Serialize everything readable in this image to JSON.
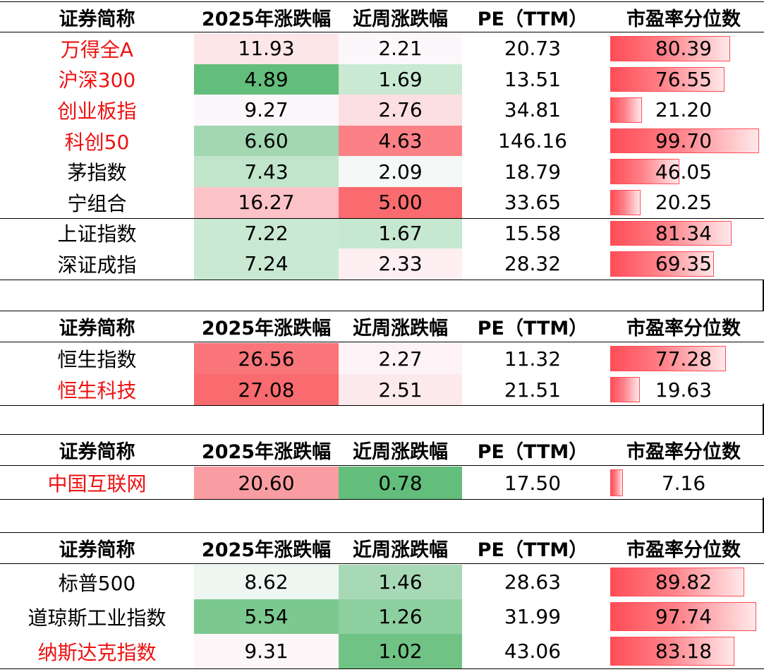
{
  "headers": {
    "name": "证券简称",
    "ytd": "2025年涨跌幅",
    "week": "近周涨跌幅",
    "pe": "PE（TTM）",
    "pct": "市盈率分位数"
  },
  "colors": {
    "highlight_name": "#ee1111",
    "pe_bar": "#ff4d57",
    "heat_up_strong": "#f96b6e",
    "heat_down_strong": "#63be7b"
  },
  "tables": [
    {
      "rows": [
        {
          "name": "万得全A",
          "red": true,
          "ytd": "11.93",
          "week": "2.21",
          "pe": "20.73",
          "pct": "80.39",
          "pct_value": 80.39,
          "ytd_bg": "#fde6e8",
          "week_bg": "#fcf7fa"
        },
        {
          "name": "沪深300",
          "red": true,
          "ytd": "4.89",
          "week": "1.69",
          "pe": "13.51",
          "pct": "76.55",
          "pct_value": 76.55,
          "ytd_bg": "#63be7b",
          "week_bg": "#c9e9d3"
        },
        {
          "name": "创业板指",
          "red": true,
          "ytd": "9.27",
          "week": "2.76",
          "pe": "34.81",
          "pct": "21.20",
          "pct_value": 21.2,
          "ytd_bg": "#fcf7fa",
          "week_bg": "#fcdfe2"
        },
        {
          "name": "科创50",
          "red": true,
          "ytd": "6.60",
          "week": "4.63",
          "pe": "146.16",
          "pct": "99.70",
          "pct_value": 99.7,
          "ytd_bg": "#a2d7b1",
          "week_bg": "#fb8187"
        },
        {
          "name": "茅指数",
          "red": false,
          "ytd": "7.43",
          "week": "2.09",
          "pe": "18.79",
          "pct": "46.05",
          "pct_value": 46.05,
          "ytd_bg": "#c1e5cb",
          "week_bg": "#f4f8f6"
        },
        {
          "name": "宁组合",
          "red": false,
          "ytd": "16.27",
          "week": "5.00",
          "pe": "33.65",
          "pct": "20.25",
          "pct_value": 20.25,
          "ytd_bg": "#fbc3c8",
          "week_bg": "#f96b6e"
        },
        {
          "name": "上证指数",
          "red": false,
          "ytd": "7.22",
          "week": "1.67",
          "pe": "15.58",
          "pct": "81.34",
          "pct_value": 81.34,
          "ytd_bg": "#c9e9d3",
          "week_bg": "#c6e7d0"
        },
        {
          "name": "深证成指",
          "red": false,
          "ytd": "7.24",
          "week": "2.33",
          "pe": "28.32",
          "pct": "69.35",
          "pct_value": 69.35,
          "ytd_bg": "#c9e9d3",
          "week_bg": "#fdeff2"
        }
      ]
    },
    {
      "rows": [
        {
          "name": "恒生指数",
          "red": false,
          "ytd": "26.56",
          "week": "2.27",
          "pe": "11.32",
          "pct": "77.28",
          "pct_value": 77.28,
          "ytd_bg": "#f9757a",
          "week_bg": "#fdf2f5"
        },
        {
          "name": "恒生科技",
          "red": true,
          "ytd": "27.08",
          "week": "2.51",
          "pe": "21.51",
          "pct": "19.63",
          "pct_value": 19.63,
          "ytd_bg": "#f96b6e",
          "week_bg": "#fce9ec"
        }
      ]
    },
    {
      "rows": [
        {
          "name": "中国互联网",
          "red": true,
          "ytd": "20.60",
          "week": "0.78",
          "pe": "17.50",
          "pct": "7.16",
          "pct_value": 7.16,
          "ytd_bg": "#fa9da2",
          "week_bg": "#63be7b"
        }
      ]
    },
    {
      "rows": [
        {
          "name": "标普500",
          "red": false,
          "ytd": "8.62",
          "week": "1.46",
          "pe": "28.63",
          "pct": "89.82",
          "pct_value": 89.82,
          "ytd_bg": "#eef6f1",
          "week_bg": "#a8d9b6"
        },
        {
          "name": "道琼斯工业指数",
          "red": false,
          "ytd": "5.54",
          "week": "1.26",
          "pe": "31.99",
          "pct": "97.74",
          "pct_value": 97.74,
          "ytd_bg": "#7cc98f",
          "week_bg": "#8ecfa0"
        },
        {
          "name": "纳斯达克指数",
          "red": true,
          "ytd": "9.31",
          "week": "1.02",
          "pe": "43.06",
          "pct": "83.18",
          "pct_value": 83.18,
          "ytd_bg": "#fcf6f9",
          "week_bg": "#70c385"
        }
      ]
    }
  ]
}
